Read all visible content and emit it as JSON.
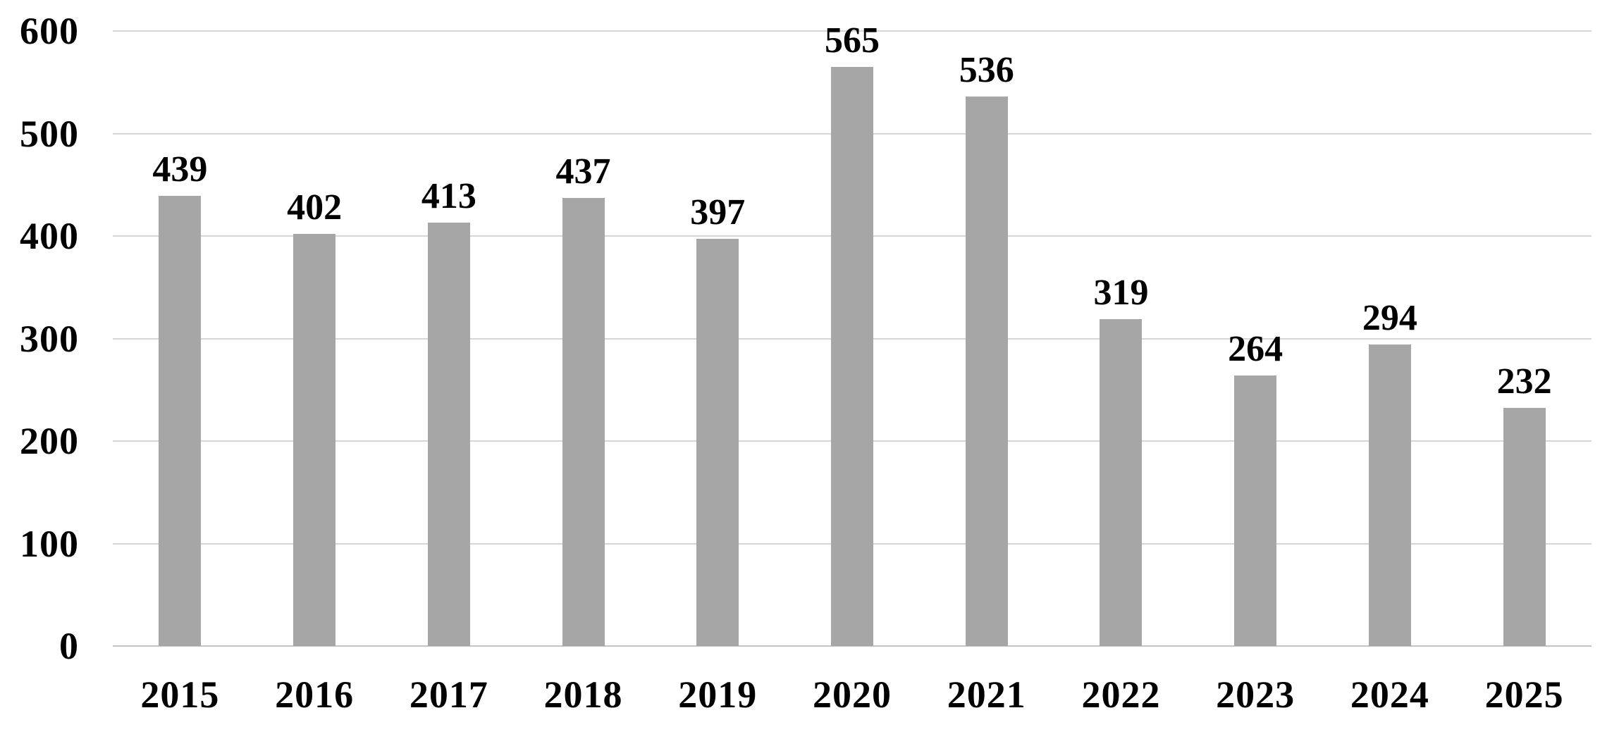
{
  "chart_data": {
    "type": "bar",
    "title": "",
    "xlabel": "",
    "ylabel": "",
    "categories": [
      "2015",
      "2016",
      "2017",
      "2018",
      "2019",
      "2020",
      "2021",
      "2022",
      "2023",
      "2024",
      "2025"
    ],
    "values": [
      439,
      402,
      413,
      437,
      397,
      565,
      536,
      319,
      264,
      294,
      232
    ],
    "data_labels": [
      "439",
      "402",
      "413",
      "437",
      "397",
      "565",
      "536",
      "319",
      "264",
      "294",
      "232"
    ],
    "ylim": [
      0,
      600
    ],
    "yticks": [
      0,
      100,
      200,
      300,
      400,
      500,
      600
    ],
    "ytick_labels": [
      "0",
      "100",
      "200",
      "300",
      "400",
      "500",
      "600"
    ],
    "grid": true,
    "legend": false,
    "bar_color": "#a6a6a6",
    "gridline_color": "#d6d6d6",
    "axis_line_color": "#c4c4c4",
    "label_color": "#000000",
    "background_color": "#ffffff"
  }
}
